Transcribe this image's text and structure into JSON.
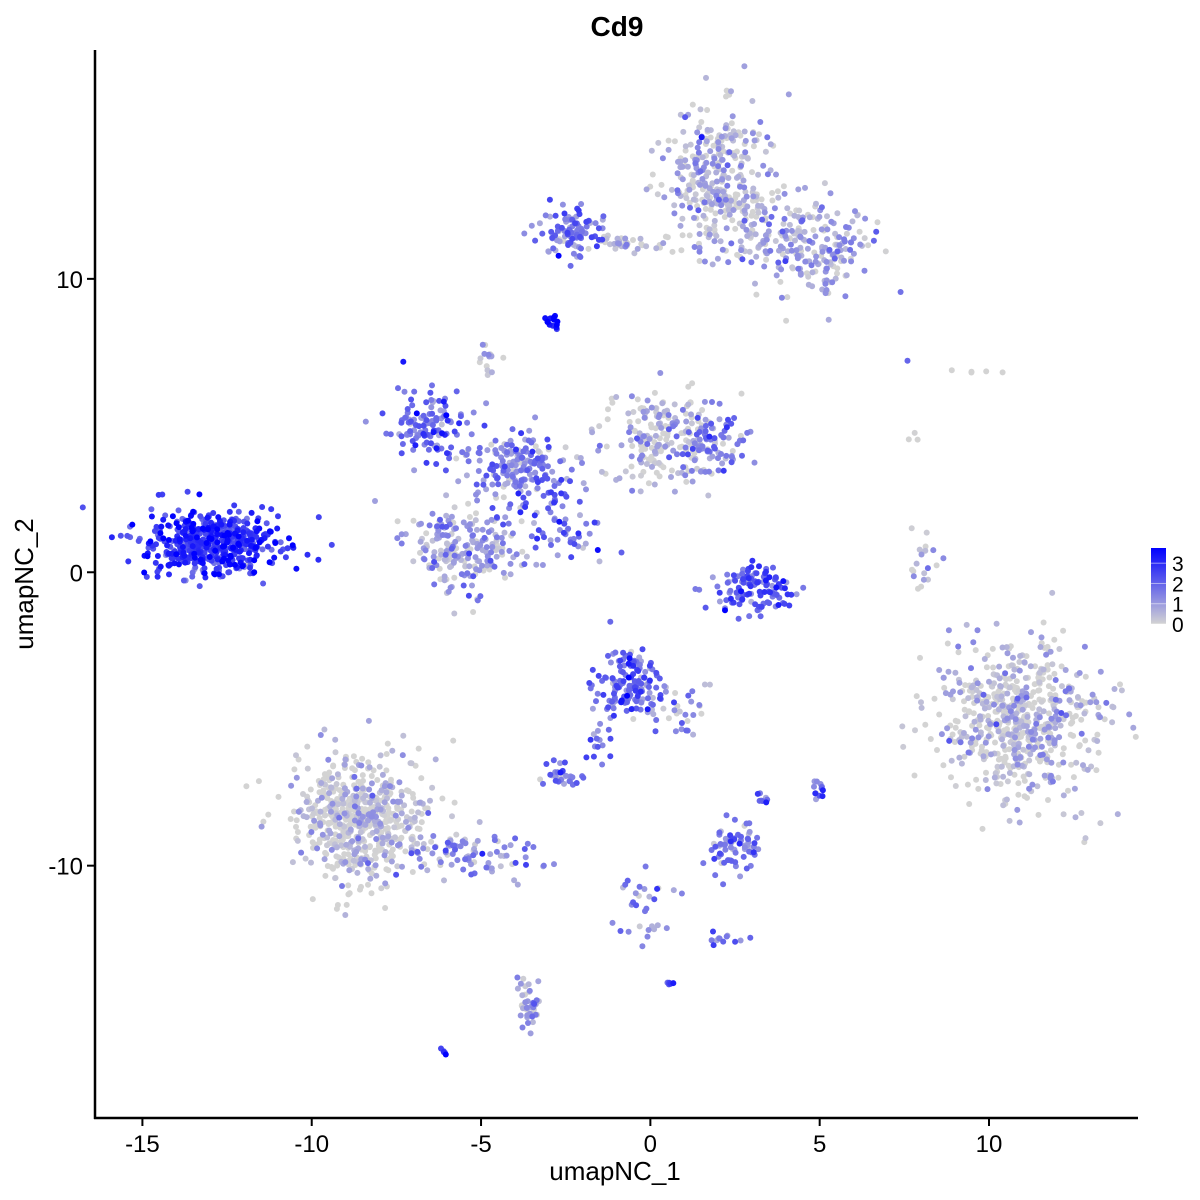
{
  "chart_data": {
    "type": "scatter",
    "title": "Cd9",
    "xlabel": "umapNC_1",
    "ylabel": "umapNC_2",
    "xlim": [
      -16.4,
      14.4
    ],
    "ylim": [
      -18.6,
      17.8
    ],
    "xticks": [
      -15,
      -10,
      -5,
      0,
      5,
      10
    ],
    "yticks": [
      -10,
      0,
      10
    ],
    "grid": false,
    "legend": {
      "placement": "right",
      "type": "colorbar",
      "ticks": [
        3,
        2,
        1,
        0
      ],
      "range": [
        0,
        3.75
      ],
      "low_color": "#d3d3d3",
      "high_color": "#0000ff"
    },
    "note_points": "clusters of cells, each with center (data units), spread, approximate cell count and mean expression",
    "clusters": [
      {
        "x": -12.9,
        "y": 1.0,
        "sx": 1.0,
        "sy": 0.55,
        "n": 520,
        "expr": 2.7
      },
      {
        "x": 2.1,
        "y": 13.4,
        "sx": 0.8,
        "sy": 1.2,
        "n": 360,
        "expr": 0.6
      },
      {
        "x": 4.8,
        "y": 11.0,
        "sx": 0.9,
        "sy": 0.8,
        "n": 220,
        "expr": 0.9
      },
      {
        "x": -2.4,
        "y": 11.6,
        "sx": 0.5,
        "sy": 0.4,
        "n": 90,
        "expr": 1.7
      },
      {
        "x": -0.6,
        "y": 11.2,
        "sx": 0.9,
        "sy": 0.15,
        "n": 40,
        "expr": 0.4
      },
      {
        "x": -2.9,
        "y": 8.6,
        "sx": 0.12,
        "sy": 0.12,
        "n": 15,
        "expr": 3.3
      },
      {
        "x": -6.6,
        "y": 5.0,
        "sx": 0.6,
        "sy": 0.6,
        "n": 120,
        "expr": 1.8
      },
      {
        "x": -4.0,
        "y": 3.7,
        "sx": 0.8,
        "sy": 0.5,
        "n": 160,
        "expr": 1.4
      },
      {
        "x": 0.3,
        "y": 4.5,
        "sx": 1.0,
        "sy": 0.8,
        "n": 200,
        "expr": 0.5
      },
      {
        "x": 1.8,
        "y": 4.3,
        "sx": 0.5,
        "sy": 0.5,
        "n": 80,
        "expr": 1.6
      },
      {
        "x": -5.5,
        "y": 0.8,
        "sx": 0.8,
        "sy": 0.7,
        "n": 220,
        "expr": 0.9
      },
      {
        "x": -3.2,
        "y": 2.0,
        "sx": 0.6,
        "sy": 0.8,
        "n": 60,
        "expr": 1.8
      },
      {
        "x": -2.0,
        "y": 1.0,
        "sx": 0.5,
        "sy": 0.35,
        "n": 20,
        "expr": 1.5
      },
      {
        "x": -4.8,
        "y": 7.2,
        "sx": 0.15,
        "sy": 0.3,
        "n": 15,
        "expr": 0.2
      },
      {
        "x": 3.2,
        "y": -0.6,
        "sx": 0.6,
        "sy": 0.4,
        "n": 120,
        "expr": 2.0
      },
      {
        "x": 8.0,
        "y": 0.3,
        "sx": 0.2,
        "sy": 0.5,
        "n": 20,
        "expr": 0.4
      },
      {
        "x": 11.0,
        "y": -5.0,
        "sx": 1.2,
        "sy": 1.3,
        "n": 620,
        "expr": 0.3
      },
      {
        "x": -8.5,
        "y": -8.3,
        "sx": 1.0,
        "sy": 1.1,
        "n": 620,
        "expr": 0.15
      },
      {
        "x": -5.3,
        "y": -9.6,
        "sx": 1.0,
        "sy": 0.4,
        "n": 80,
        "expr": 1.3
      },
      {
        "x": -0.6,
        "y": -3.7,
        "sx": 0.5,
        "sy": 0.6,
        "n": 150,
        "expr": 1.9
      },
      {
        "x": 0.8,
        "y": -4.6,
        "sx": 0.5,
        "sy": 0.4,
        "n": 30,
        "expr": 1.2
      },
      {
        "x": -2.6,
        "y": -7.0,
        "sx": 0.3,
        "sy": 0.2,
        "n": 30,
        "expr": 1.6
      },
      {
        "x": -1.6,
        "y": -5.8,
        "sx": 0.2,
        "sy": 0.5,
        "n": 15,
        "expr": 1.7
      },
      {
        "x": 2.5,
        "y": -9.4,
        "sx": 0.4,
        "sy": 0.4,
        "n": 70,
        "expr": 1.6
      },
      {
        "x": 5.0,
        "y": -7.4,
        "sx": 0.1,
        "sy": 0.2,
        "n": 12,
        "expr": 1.8
      },
      {
        "x": 3.3,
        "y": -7.7,
        "sx": 0.1,
        "sy": 0.1,
        "n": 8,
        "expr": 1.6
      },
      {
        "x": -3.6,
        "y": -14.8,
        "sx": 0.2,
        "sy": 0.5,
        "n": 40,
        "expr": 1.0
      },
      {
        "x": -0.2,
        "y": -11.3,
        "sx": 0.4,
        "sy": 0.6,
        "n": 30,
        "expr": 1.4
      },
      {
        "x": 2.2,
        "y": -12.5,
        "sx": 0.3,
        "sy": 0.15,
        "n": 12,
        "expr": 1.8
      },
      {
        "x": 0.6,
        "y": -14.0,
        "sx": 0.05,
        "sy": 0.05,
        "n": 5,
        "expr": 2.5
      },
      {
        "x": -6.1,
        "y": -16.3,
        "sx": 0.05,
        "sy": 0.05,
        "n": 5,
        "expr": 2.5
      },
      {
        "x": 9.0,
        "y": 6.8,
        "sx": 1.0,
        "sy": 0.3,
        "n": 6,
        "expr": 0.0
      },
      {
        "x": 7.7,
        "y": 4.7,
        "sx": 0.1,
        "sy": 0.2,
        "n": 3,
        "expr": 0.0
      }
    ]
  }
}
